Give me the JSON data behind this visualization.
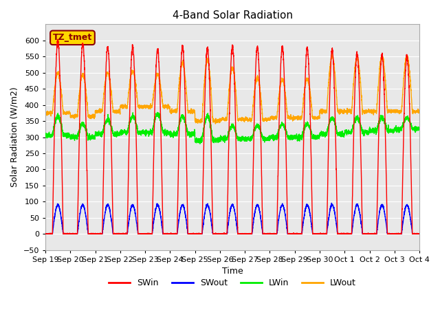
{
  "title": "4-Band Solar Radiation",
  "xlabel": "Time",
  "ylabel": "Solar Radiation (W/m2)",
  "ylim": [
    -50,
    650
  ],
  "annotation": "TZ_tmet",
  "annotation_color": "#8B0000",
  "annotation_bg": "#FFD700",
  "num_days": 15,
  "colors": {
    "SWin": "#FF0000",
    "SWout": "#0000FF",
    "LWin": "#00EE00",
    "LWout": "#FFA500"
  },
  "background_color": "#E8E8E8",
  "grid_color": "#FFFFFF",
  "line_width": 1.0,
  "x_tick_labels": [
    "Sep 19",
    "Sep 20",
    "Sep 21",
    "Sep 22",
    "Sep 23",
    "Sep 24",
    "Sep 25",
    "Sep 26",
    "Sep 27",
    "Sep 28",
    "Sep 29",
    "Sep 30",
    "Oct 1",
    "Oct 2",
    "Oct 3",
    "Oct 4"
  ],
  "SWin_peaks": [
    600,
    590,
    580,
    580,
    570,
    580,
    575,
    580,
    580,
    580,
    575,
    570,
    560,
    555,
    550
  ],
  "LWout_night": [
    375,
    365,
    380,
    395,
    395,
    380,
    350,
    355,
    355,
    360,
    360,
    380,
    380,
    380,
    380
  ],
  "LWout_day_boost": [
    125,
    130,
    120,
    110,
    100,
    150,
    190,
    160,
    130,
    120,
    120,
    170,
    165,
    170,
    170
  ],
  "LWin_base": [
    305,
    300,
    310,
    315,
    315,
    310,
    290,
    295,
    295,
    300,
    300,
    310,
    315,
    320,
    325
  ],
  "LWin_day_boost": [
    60,
    40,
    45,
    50,
    55,
    55,
    75,
    40,
    40,
    40,
    40,
    50,
    45,
    40,
    35
  ]
}
